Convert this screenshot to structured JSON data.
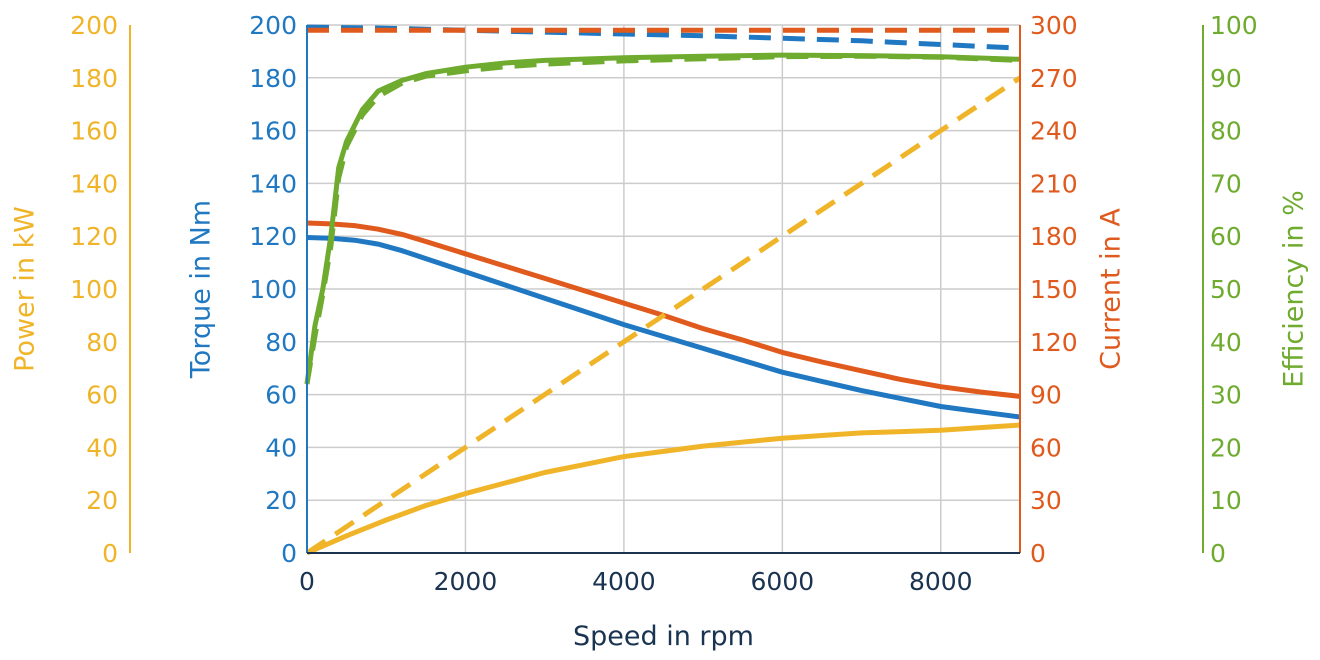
{
  "chart_data": {
    "type": "line",
    "xlabel": "Speed in rpm",
    "xlim": [
      0,
      9000
    ],
    "xticks": [
      0,
      2000,
      4000,
      6000,
      8000
    ],
    "grid": true,
    "axes": {
      "power": {
        "label": "Power in kW",
        "ylim": [
          0,
          200
        ],
        "ticks": [
          0,
          20,
          40,
          60,
          80,
          100,
          120,
          140,
          160,
          180,
          200
        ],
        "color": "#f0b429"
      },
      "torque": {
        "label": "Torque in Nm",
        "ylim": [
          0,
          200
        ],
        "ticks": [
          0,
          20,
          40,
          60,
          80,
          100,
          120,
          140,
          160,
          180,
          200
        ],
        "color": "#1f78c1"
      },
      "current": {
        "label": "Current in A",
        "ylim": [
          0,
          300
        ],
        "ticks": [
          0,
          30,
          60,
          90,
          120,
          150,
          180,
          210,
          240,
          270,
          300
        ],
        "color": "#e05a1e"
      },
      "efficiency": {
        "label": "Efficiency in %",
        "ylim": [
          0,
          100
        ],
        "ticks": [
          0,
          10,
          20,
          30,
          40,
          50,
          60,
          70,
          80,
          90,
          100
        ],
        "color": "#6fab2e"
      }
    },
    "series": [
      {
        "axis": "torque",
        "style": "solid",
        "color": "#1f78c1",
        "x": [
          0,
          300,
          600,
          900,
          1200,
          1500,
          2000,
          2500,
          3000,
          3500,
          4000,
          4500,
          5000,
          5500,
          6000,
          6500,
          7000,
          7500,
          8000,
          8500,
          9000
        ],
        "y": [
          119.5,
          119.2,
          118.5,
          117,
          114.5,
          111.5,
          106.5,
          101.5,
          96.5,
          91.5,
          86.5,
          82,
          77.5,
          73,
          68.5,
          65,
          61.5,
          58.5,
          55.5,
          53.5,
          51.5
        ]
      },
      {
        "axis": "current",
        "style": "solid",
        "color": "#e05a1e",
        "x": [
          0,
          300,
          600,
          900,
          1200,
          1500,
          2000,
          2500,
          3000,
          3500,
          4000,
          4500,
          5000,
          5500,
          6000,
          6500,
          7000,
          7500,
          8000,
          8500,
          9000
        ],
        "y": [
          187.5,
          187,
          186,
          184,
          181,
          177,
          170,
          163,
          156,
          149,
          142,
          135,
          127.5,
          121,
          114,
          108.5,
          103.5,
          98.5,
          94.5,
          91.5,
          89
        ]
      },
      {
        "axis": "power",
        "style": "solid",
        "color": "#f0b429",
        "x": [
          0,
          500,
          1000,
          1500,
          2000,
          2500,
          3000,
          3500,
          4000,
          4500,
          5000,
          5500,
          6000,
          6500,
          7000,
          7500,
          8000,
          8500,
          9000
        ],
        "y": [
          0,
          6.5,
          12.5,
          18,
          22.5,
          26.5,
          30.5,
          33.5,
          36.5,
          38.5,
          40.5,
          42,
          43.5,
          44.5,
          45.5,
          46,
          46.5,
          47.5,
          48.5
        ]
      },
      {
        "axis": "efficiency",
        "style": "solid",
        "color": "#6fab2e",
        "x": [
          0,
          100,
          200,
          300,
          400,
          500,
          700,
          900,
          1200,
          1500,
          2000,
          2500,
          3000,
          4000,
          5000,
          6000,
          7000,
          8000,
          9000
        ],
        "y": [
          32,
          43,
          50,
          60,
          73,
          78,
          84,
          87.5,
          89.5,
          90.8,
          92,
          92.8,
          93.3,
          93.8,
          94.1,
          94.3,
          94.2,
          94,
          93.5
        ]
      },
      {
        "axis": "torque",
        "style": "dashed",
        "color": "#1f78c1",
        "x": [
          0,
          1000,
          2000,
          3000,
          4000,
          5000,
          6000,
          7000,
          8000,
          9000
        ],
        "y": [
          199.2,
          198.8,
          198,
          197.3,
          196.6,
          195.9,
          195,
          194,
          192.6,
          191.2
        ]
      },
      {
        "axis": "current",
        "style": "dashed",
        "color": "#e05a1e",
        "x": [
          0,
          9000
        ],
        "y": [
          297,
          297
        ]
      },
      {
        "axis": "power",
        "style": "dashed",
        "color": "#f0b429",
        "x": [
          0,
          9000
        ],
        "y": [
          0,
          180
        ]
      },
      {
        "axis": "efficiency",
        "style": "dashed",
        "color": "#6fab2e",
        "x": [
          0,
          100,
          200,
          300,
          400,
          500,
          700,
          900,
          1200,
          1500,
          2000,
          2500,
          3000,
          4000,
          5000,
          6000,
          7000,
          8000,
          9000
        ],
        "y": [
          32,
          41,
          49,
          58,
          71,
          77,
          83,
          86.5,
          89,
          90.3,
          91.3,
          92.1,
          92.6,
          93.2,
          93.6,
          94,
          94.1,
          93.9,
          93.3
        ]
      }
    ]
  }
}
